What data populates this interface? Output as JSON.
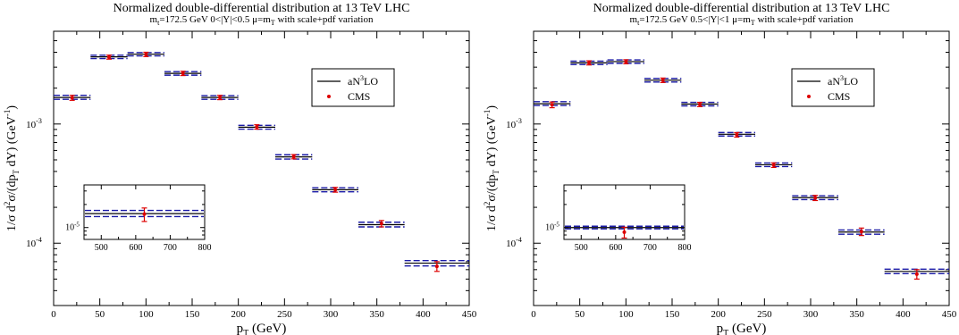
{
  "chart_data": [
    {
      "type": "line",
      "title": "Normalized double-differential distribution at 13 TeV LHC",
      "subtitle": {
        "mass_label": "m",
        "mass_sub": "t",
        "mass_value": "=172.5 GeV",
        "rapidity": "0<|Y|<0.5",
        "scale_label": "μ=m",
        "scale_sub": "T",
        "variation": "with scale+pdf variation"
      },
      "xlabel": {
        "main": "p",
        "sub": "T",
        "unit": " (GeV)"
      },
      "ylabel": {
        "prefix": "1/σ  d",
        "sup1": "2",
        "mid1": "σ/(dp",
        "sub1": "T",
        "mid2": " dY)  (GeV",
        "sup2": "-1",
        "end": ")"
      },
      "xlim": [
        0,
        450
      ],
      "ylim": [
        3e-05,
        0.006
      ],
      "yscale": "log",
      "xticks": [
        0,
        50,
        100,
        150,
        200,
        250,
        300,
        350,
        400,
        450
      ],
      "yticks": [
        {
          "value": 0.001,
          "base": "10",
          "exp": "-3"
        },
        {
          "value": 0.0001,
          "base": "10",
          "exp": "-4"
        }
      ],
      "legend": {
        "position": "top-right",
        "theory": {
          "prefix": "aN",
          "sup": "3",
          "suffix": "LO"
        },
        "data": "CMS"
      },
      "colors": {
        "theory_central": "#000000",
        "theory_band": "#1a1aa6",
        "data": "#dd0000"
      },
      "bins": [
        [
          0,
          40
        ],
        [
          40,
          80
        ],
        [
          80,
          120
        ],
        [
          120,
          160
        ],
        [
          160,
          200
        ],
        [
          200,
          240
        ],
        [
          240,
          280
        ],
        [
          280,
          330
        ],
        [
          330,
          380
        ],
        [
          380,
          450
        ]
      ],
      "theory": {
        "central": [
          0.00167,
          0.00366,
          0.00385,
          0.00266,
          0.00167,
          0.00094,
          0.00053,
          0.000281,
          0.000143,
          6.8e-05
        ],
        "upper": [
          0.00174,
          0.00378,
          0.00398,
          0.00275,
          0.00173,
          0.000975,
          0.000552,
          0.000292,
          0.00015,
          7.15e-05
        ],
        "lower": [
          0.00161,
          0.00354,
          0.00373,
          0.00257,
          0.00161,
          0.000905,
          0.000508,
          0.00027,
          0.000137,
          6.45e-05
        ]
      },
      "data": {
        "x": [
          20,
          60,
          100,
          140,
          180,
          220,
          260,
          305,
          355,
          415
        ],
        "y": [
          0.00166,
          0.00364,
          0.00384,
          0.00266,
          0.00167,
          0.000946,
          0.000532,
          0.000281,
          0.000146,
          6.4e-05
        ],
        "err": [
          8e-05,
          0.00014,
          0.00016,
          0.00011,
          7e-05,
          4e-05,
          2.2e-05,
          1.3e-05,
          9e-06,
          6e-06
        ]
      },
      "inset": {
        "xlim": [
          450,
          800
        ],
        "ylim": [
          7e-06,
          3.6e-05
        ],
        "yscale": "log",
        "xticks": [
          500,
          600,
          700,
          800
        ],
        "ytick": {
          "value": 1e-05,
          "base": "10",
          "exp": "-5"
        },
        "bin": [
          450,
          800
        ],
        "theory": {
          "central": 1.52e-05,
          "upper": 1.67e-05,
          "lower": 1.39e-05
        },
        "data": {
          "x": 625,
          "y": 1.5e-05,
          "err": 3e-06
        }
      }
    },
    {
      "type": "line",
      "title": "Normalized double-differential distribution at 13 TeV LHC",
      "subtitle": {
        "mass_label": "m",
        "mass_sub": "t",
        "mass_value": "=172.5 GeV",
        "rapidity": "0.5<|Y|<1",
        "scale_label": "μ=m",
        "scale_sub": "T",
        "variation": "with scale+pdf variation"
      },
      "xlabel": {
        "main": "p",
        "sub": "T",
        "unit": " (GeV)"
      },
      "ylabel": {
        "prefix": "1/σ  d",
        "sup1": "2",
        "mid1": "σ/(dp",
        "sub1": "T",
        "mid2": " dY)  (GeV",
        "sup2": "-1",
        "end": ")"
      },
      "xlim": [
        0,
        450
      ],
      "ylim": [
        3e-05,
        0.006
      ],
      "yscale": "log",
      "xticks": [
        0,
        50,
        100,
        150,
        200,
        250,
        300,
        350,
        400,
        450
      ],
      "yticks": [
        {
          "value": 0.001,
          "base": "10",
          "exp": "-3"
        },
        {
          "value": 0.0001,
          "base": "10",
          "exp": "-4"
        }
      ],
      "legend": {
        "position": "top-right",
        "theory": {
          "prefix": "aN",
          "sup": "3",
          "suffix": "LO"
        },
        "data": "CMS"
      },
      "colors": {
        "theory_central": "#000000",
        "theory_band": "#1a1aa6",
        "data": "#dd0000"
      },
      "bins": [
        [
          0,
          40
        ],
        [
          40,
          80
        ],
        [
          80,
          120
        ],
        [
          120,
          160
        ],
        [
          160,
          200
        ],
        [
          200,
          240
        ],
        [
          240,
          280
        ],
        [
          280,
          330
        ],
        [
          330,
          380
        ],
        [
          380,
          450
        ]
      ],
      "theory": {
        "central": [
          0.00148,
          0.00326,
          0.00334,
          0.00233,
          0.00147,
          0.00082,
          0.000455,
          0.000241,
          0.000124,
          5.8e-05
        ],
        "upper": [
          0.00154,
          0.00337,
          0.00345,
          0.00241,
          0.00152,
          0.000848,
          0.000471,
          0.00025,
          0.000129,
          6.05e-05
        ],
        "lower": [
          0.00143,
          0.00315,
          0.00323,
          0.00225,
          0.00142,
          0.000793,
          0.00044,
          0.000232,
          0.000119,
          5.55e-05
        ]
      },
      "data": {
        "x": [
          20,
          60,
          100,
          140,
          180,
          220,
          260,
          305,
          355,
          415
        ],
        "y": [
          0.00145,
          0.00326,
          0.00333,
          0.00233,
          0.00146,
          0.000812,
          0.000452,
          0.00024,
          0.000125,
          5.5e-05
        ],
        "err": [
          8e-05,
          0.00013,
          0.00013,
          0.0001,
          6e-05,
          3.5e-05,
          2e-05,
          1.2e-05,
          9e-06,
          5e-06
        ]
      },
      "inset": {
        "xlim": [
          450,
          800
        ],
        "ylim": [
          7e-06,
          3.6e-05
        ],
        "yscale": "log",
        "xticks": [
          500,
          600,
          700,
          800
        ],
        "ytick": {
          "value": 1e-05,
          "base": "10",
          "exp": "-5"
        },
        "bin": [
          450,
          800
        ],
        "theory": {
          "central": 1e-05,
          "upper": 1.04e-05,
          "lower": 9.6e-06
        },
        "data": {
          "x": 625,
          "y": 8.7e-06,
          "err": 1.4e-06
        }
      }
    }
  ]
}
